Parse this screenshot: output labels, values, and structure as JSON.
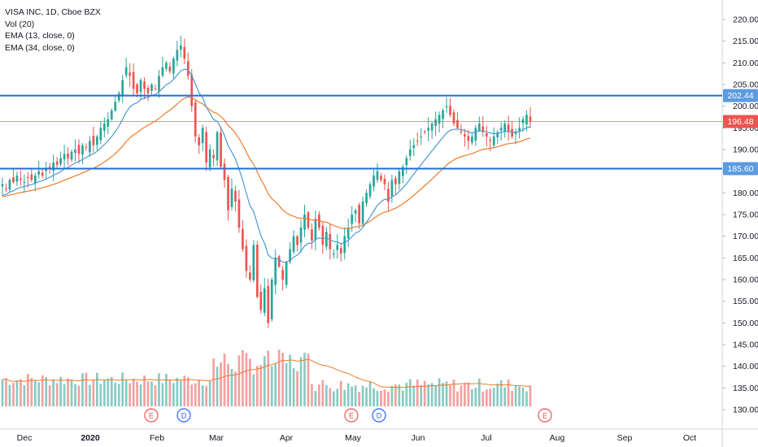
{
  "legend": {
    "symbol_line": "VISA INC, 1D, Cboe BZX",
    "volume_line": "Vol (20)",
    "ema_fast_line": "EMA (13, close, 0)",
    "ema_slow_line": "EMA (34, close, 0)"
  },
  "colors": {
    "up": "#26a69a",
    "down": "#ef5350",
    "vol_up": "#86cbc3",
    "vol_down": "#f3a0a0",
    "ema_fast": "#4a9ad4",
    "ema_slow": "#f07c2a",
    "vol_ma": "#f07c2a",
    "hline": "#1e6fd9",
    "hline_label_bg": "#5b9be0",
    "price_label_bg": "#ef5350",
    "event_earnings": "#ef5350",
    "event_dividend": "#2962ff"
  },
  "chart_data": {
    "type": "candlestick",
    "y_axis": {
      "range": [
        126,
        222
      ],
      "ticks": [
        "130.00",
        "135.00",
        "140.00",
        "145.00",
        "150.00",
        "155.00",
        "160.00",
        "165.00",
        "170.00",
        "175.00",
        "180.00",
        "185.00",
        "190.00",
        "195.00",
        "200.00",
        "205.00",
        "210.00",
        "215.00",
        "220.00"
      ]
    },
    "x_axis": {
      "labels": [
        "Dec",
        "2020",
        "Feb",
        "Mar",
        "Apr",
        "May",
        "Jun",
        "Jul",
        "Aug",
        "Sep",
        "Oct"
      ]
    },
    "horizontal_lines": [
      {
        "value": 202.44,
        "label": "202.44"
      },
      {
        "value": 185.6,
        "label": "185.60"
      }
    ],
    "last_price": {
      "value": 196.48,
      "label": "196.48"
    },
    "events": [
      {
        "type": "earnings",
        "label": "E"
      },
      {
        "type": "dividend",
        "label": "D"
      },
      {
        "type": "earnings",
        "label": "E"
      },
      {
        "type": "dividend",
        "label": "D"
      },
      {
        "type": "earnings",
        "label": "E",
        "future": true
      }
    ],
    "ohlc_closes": [
      182,
      181,
      183,
      182.5,
      184,
      183,
      182.5,
      183.5,
      183,
      184,
      185,
      184,
      185.5,
      186,
      187,
      186.5,
      188,
      189,
      188,
      189.5,
      190,
      189,
      191,
      190.5,
      192,
      191,
      193,
      195,
      196,
      197,
      199,
      201,
      203,
      206,
      209,
      207,
      204,
      203,
      206,
      204,
      203,
      205,
      204,
      207,
      209,
      210,
      208,
      211,
      213,
      214,
      211,
      207,
      200,
      193,
      191,
      195,
      187,
      190,
      188,
      194,
      186,
      183,
      176,
      181,
      178,
      172,
      167,
      162,
      160,
      168,
      156,
      153,
      158,
      150,
      160,
      165,
      163,
      160,
      164,
      167,
      170,
      168,
      172,
      175,
      172,
      169,
      174,
      172,
      168,
      171,
      167,
      166,
      168,
      166,
      170,
      172,
      175,
      176,
      173,
      178,
      180,
      182,
      184,
      185,
      183,
      182,
      178,
      183,
      182,
      185,
      186,
      188,
      190,
      191,
      192,
      193,
      194,
      195,
      196,
      197,
      198,
      199,
      200,
      198,
      196,
      195,
      194,
      193,
      192,
      193,
      195,
      196,
      194,
      193,
      192,
      193,
      194,
      195,
      196,
      194,
      193,
      194,
      195,
      197,
      198,
      196.48
    ],
    "ema_13_approx": "smoothed close",
    "ema_34_approx": "smoothed close"
  }
}
